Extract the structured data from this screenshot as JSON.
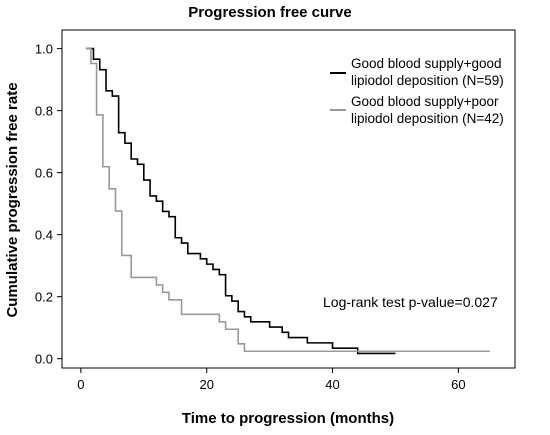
{
  "chart_data": {
    "type": "line",
    "title": "Progression free curve",
    "xlabel": "Time to progression (months)",
    "ylabel": "Cumulative progression free rate",
    "xlim": [
      -3,
      69
    ],
    "ylim": [
      -0.03,
      1.06
    ],
    "xticks": [
      "0",
      "20",
      "40",
      "60"
    ],
    "yticks": [
      "0.0",
      "0.2",
      "0.4",
      "0.6",
      "0.8",
      "1.0"
    ],
    "legend_position": "top-right",
    "annotation": "Log-rank test p-value=0.027",
    "series": [
      {
        "legend_line1": "Good blood supply+good",
        "legend_line2": "lipiodol deposition (N=59)",
        "color": "#000000",
        "points": [
          [
            0.8,
            1.0
          ],
          [
            2,
            0.966
          ],
          [
            3,
            0.932
          ],
          [
            4,
            0.864
          ],
          [
            5,
            0.847
          ],
          [
            6,
            0.729
          ],
          [
            7,
            0.695
          ],
          [
            8,
            0.644
          ],
          [
            9,
            0.627
          ],
          [
            10,
            0.576
          ],
          [
            11,
            0.525
          ],
          [
            12,
            0.508
          ],
          [
            13,
            0.475
          ],
          [
            14,
            0.458
          ],
          [
            15,
            0.39
          ],
          [
            16,
            0.373
          ],
          [
            17,
            0.339
          ],
          [
            19,
            0.322
          ],
          [
            20,
            0.305
          ],
          [
            21,
            0.288
          ],
          [
            22,
            0.271
          ],
          [
            23,
            0.203
          ],
          [
            24,
            0.186
          ],
          [
            25,
            0.152
          ],
          [
            26,
            0.135
          ],
          [
            27,
            0.119
          ],
          [
            30,
            0.102
          ],
          [
            32,
            0.085
          ],
          [
            33,
            0.068
          ],
          [
            36,
            0.051
          ],
          [
            40,
            0.034
          ],
          [
            44,
            0.017
          ],
          [
            50,
            0.017
          ]
        ]
      },
      {
        "legend_line1": "Good blood supply+poor",
        "legend_line2": "lipiodol deposition (N=42)",
        "color": "#999999",
        "points": [
          [
            0.8,
            1.0
          ],
          [
            1.6,
            0.952
          ],
          [
            2.5,
            0.786
          ],
          [
            3.5,
            0.619
          ],
          [
            4.5,
            0.548
          ],
          [
            5.5,
            0.476
          ],
          [
            6.5,
            0.333
          ],
          [
            8,
            0.262
          ],
          [
            12,
            0.238
          ],
          [
            13,
            0.214
          ],
          [
            14,
            0.19
          ],
          [
            16,
            0.143
          ],
          [
            22,
            0.119
          ],
          [
            23,
            0.095
          ],
          [
            25,
            0.048
          ],
          [
            26,
            0.024
          ],
          [
            65,
            0.024
          ]
        ]
      }
    ]
  }
}
